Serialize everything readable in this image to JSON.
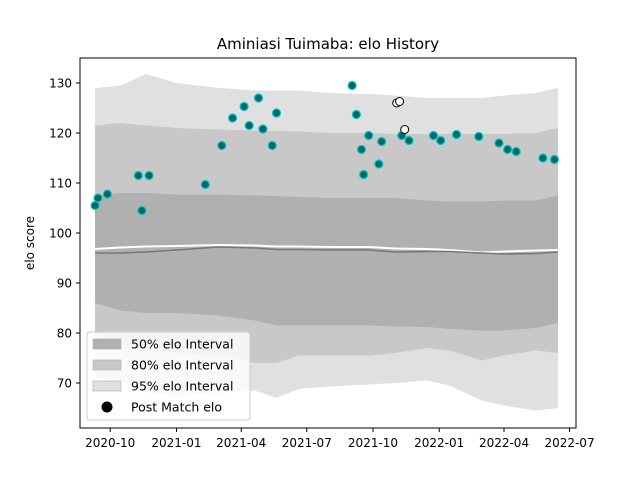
{
  "chart_data": {
    "type": "area",
    "title": "Aminiasi Tuimaba: elo History",
    "xlabel": "",
    "ylabel": "elo score",
    "x_axis_type": "date",
    "xlim": [
      "2020-08-20",
      "2022-07-10"
    ],
    "ylim": [
      61,
      135
    ],
    "xticks": [
      "2020-10",
      "2021-01",
      "2021-04",
      "2021-07",
      "2021-10",
      "2022-01",
      "2022-04",
      "2022-07"
    ],
    "yticks": [
      70,
      80,
      90,
      100,
      110,
      120,
      130
    ],
    "grid": false,
    "legend_position": "lower-left",
    "legend": [
      {
        "label": "50% elo Interval",
        "color": "#b0b0b0",
        "kind": "patch"
      },
      {
        "label": "80% elo Interval",
        "color": "#c8c8c8",
        "kind": "patch"
      },
      {
        "label": "95% elo Interval",
        "color": "#e0e0e0",
        "kind": "patch"
      },
      {
        "label": "Post Match elo",
        "color": "#000000",
        "kind": "marker"
      }
    ],
    "bands": {
      "x": [
        "2020-09-10",
        "2020-10-15",
        "2020-11-20",
        "2021-01-01",
        "2021-03-01",
        "2021-04-20",
        "2021-05-20",
        "2021-06-20",
        "2021-08-01",
        "2021-09-25",
        "2021-11-01",
        "2021-12-15",
        "2022-01-15",
        "2022-03-01",
        "2022-04-01",
        "2022-05-15",
        "2022-06-15"
      ],
      "p95_upper": [
        129,
        129.5,
        131.8,
        130,
        129,
        128.5,
        128.5,
        128.5,
        128,
        127.8,
        127.5,
        127,
        127,
        127,
        127.5,
        128,
        129
      ],
      "p80_upper": [
        121.5,
        122,
        121.5,
        121,
        120.7,
        120.5,
        120.4,
        120.3,
        120,
        120,
        119.8,
        119.8,
        119.8,
        119.8,
        119.8,
        120,
        121
      ],
      "p50_upper": [
        107.5,
        108,
        108,
        107.7,
        107.7,
        107.5,
        107.4,
        107.2,
        107,
        107,
        107,
        106.5,
        106.3,
        106.3,
        106.5,
        106.5,
        107.5
      ],
      "median": [
        96,
        96,
        96.2,
        96.6,
        97.2,
        97,
        96.7,
        96.7,
        96.6,
        96.6,
        96.2,
        96.3,
        96.3,
        96,
        95.8,
        95.9,
        96.2
      ],
      "p50_lower": [
        86,
        84.5,
        84,
        84,
        83.5,
        82.5,
        81.5,
        81.5,
        81.5,
        81.5,
        81.3,
        81.2,
        80.8,
        80.5,
        80.5,
        81,
        82
      ],
      "p80_lower": [
        80,
        78,
        76.5,
        76,
        75.5,
        74,
        74,
        75.5,
        75.5,
        75.5,
        76,
        77,
        76.5,
        74.5,
        75.5,
        76.5,
        76
      ],
      "p95_lower": [
        71,
        70.5,
        68,
        67.5,
        68,
        68.5,
        67,
        68.8,
        69.3,
        69.7,
        70,
        70.5,
        69.5,
        66.5,
        65.5,
        64.5,
        65
      ],
      "reference_line": [
        96.8,
        97.1,
        97.3,
        97.4,
        97.6,
        97.5,
        97.3,
        97.3,
        97.2,
        97.2,
        96.9,
        96.8,
        96.6,
        96.1,
        96.3,
        96.5,
        96.6
      ]
    },
    "series": [
      {
        "name": "Post Match elo",
        "color": "#006666",
        "edge_color": "#00c8c8",
        "x": [
          "2020-09-10",
          "2020-09-14",
          "2020-09-27",
          "2020-11-09",
          "2020-11-14",
          "2020-11-24",
          "2021-02-10",
          "2021-03-05",
          "2021-03-20",
          "2021-04-05",
          "2021-04-12",
          "2021-04-25",
          "2021-05-01",
          "2021-05-14",
          "2021-05-20",
          "2021-09-02",
          "2021-09-08",
          "2021-09-15",
          "2021-09-18",
          "2021-09-25",
          "2021-10-09",
          "2021-10-13",
          "2021-11-10",
          "2021-11-20",
          "2021-12-24",
          "2022-01-03",
          "2022-01-25",
          "2022-02-25",
          "2022-03-25",
          "2022-04-06",
          "2022-04-18",
          "2022-05-25",
          "2022-06-10"
        ],
        "y": [
          105.5,
          107,
          107.8,
          111.5,
          104.5,
          111.5,
          109.7,
          117.5,
          123,
          125.3,
          121.5,
          127,
          120.8,
          117.5,
          124,
          129.5,
          123.7,
          116.7,
          111.7,
          119.5,
          113.8,
          118.3,
          119.5,
          118.5,
          119.5,
          118.5,
          119.7,
          119.3,
          118,
          116.7,
          116.3,
          115,
          114.7
        ]
      },
      {
        "name": "",
        "color": "#ffffff",
        "edge_color": "#000000",
        "x": [
          "2021-11-03",
          "2021-11-07",
          "2021-11-14"
        ],
        "y": [
          126,
          126.3,
          120.7
        ]
      }
    ]
  }
}
